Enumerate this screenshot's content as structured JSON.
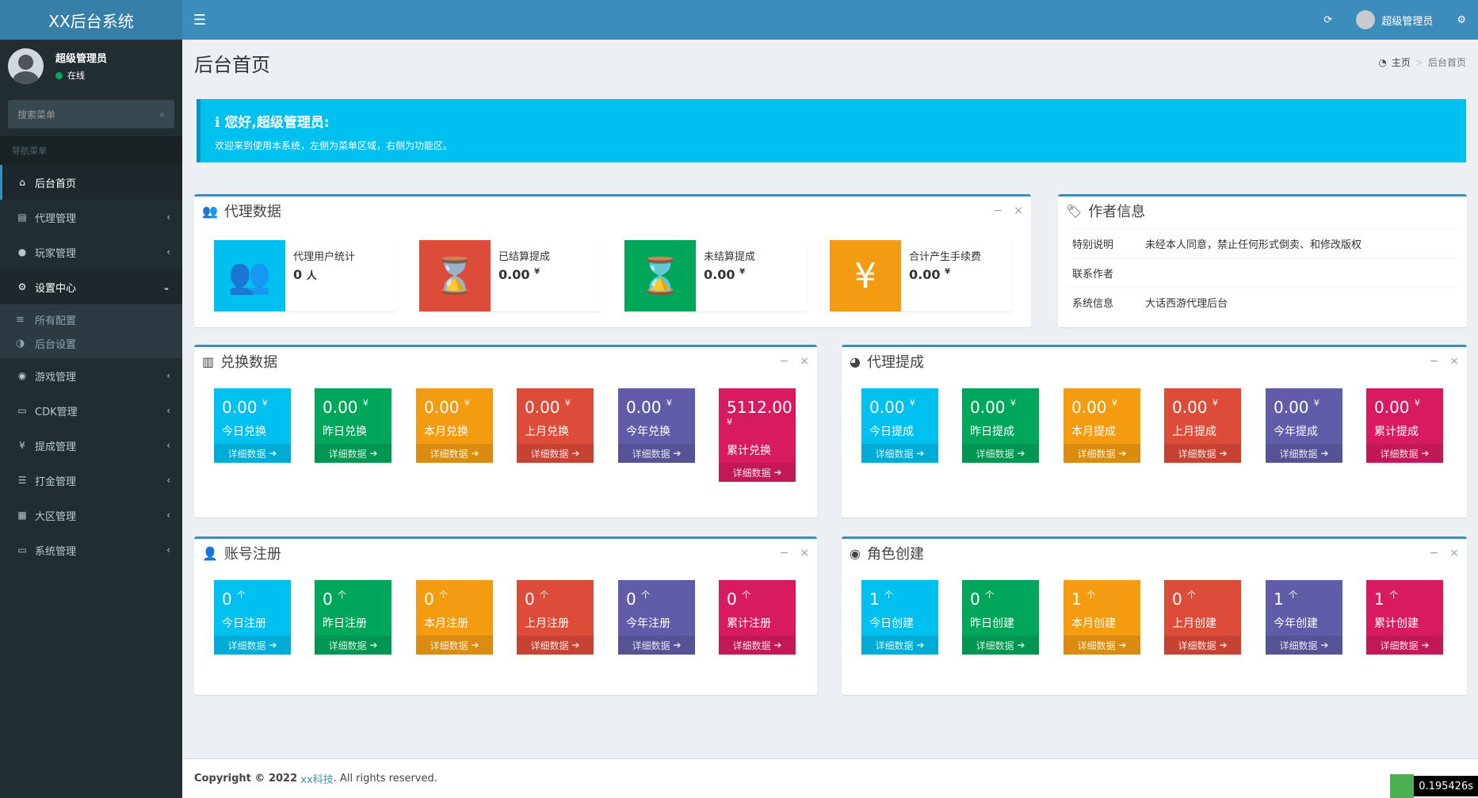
{
  "app": {
    "logo": "XX后台系统"
  },
  "topbar": {
    "user": "超级管理员"
  },
  "sidebar": {
    "user_name": "超级管理员",
    "status": "在线",
    "search_placeholder": "搜索菜单",
    "header": "导航菜单",
    "items": [
      {
        "label": "后台首页"
      },
      {
        "label": "代理管理"
      },
      {
        "label": "玩家管理"
      },
      {
        "label": "设置中心"
      },
      {
        "label": "游戏管理"
      },
      {
        "label": "CDK管理"
      },
      {
        "label": "提成管理"
      },
      {
        "label": "打金管理"
      },
      {
        "label": "大区管理"
      },
      {
        "label": "系统管理"
      }
    ],
    "submenu": [
      {
        "label": "所有配置"
      },
      {
        "label": "后台设置"
      }
    ]
  },
  "page": {
    "title": "后台首页",
    "crumb_home": "主页",
    "crumb_current": "后台首页"
  },
  "callout": {
    "title": "您好,超级管理员:",
    "text": "欢迎来到使用本系统，左侧为菜单区域，右侧为功能区。"
  },
  "agent": {
    "title": "代理数据",
    "cards": [
      {
        "label": "代理用户统计",
        "value": "0",
        "unit": "人"
      },
      {
        "label": "已结算提成",
        "value": "0.00",
        "unit": "¥"
      },
      {
        "label": "未结算提成",
        "value": "0.00",
        "unit": "¥"
      },
      {
        "label": "合计产生手续费",
        "value": "0.00",
        "unit": "¥"
      }
    ]
  },
  "author": {
    "title": "作者信息",
    "rows": [
      {
        "k": "特别说明",
        "v": "未经本人同意，禁止任何形式倒卖、和修改版权"
      },
      {
        "k": "联系作者",
        "v": ""
      },
      {
        "k": "系统信息",
        "v": "大话西游代理后台"
      }
    ]
  },
  "more_label": "详细数据",
  "exchange": {
    "title": "兑换数据",
    "cards": [
      {
        "value": "0.00",
        "unit": "¥",
        "label": "今日兑换"
      },
      {
        "value": "0.00",
        "unit": "¥",
        "label": "昨日兑换"
      },
      {
        "value": "0.00",
        "unit": "¥",
        "label": "本月兑换"
      },
      {
        "value": "0.00",
        "unit": "¥",
        "label": "上月兑换"
      },
      {
        "value": "0.00",
        "unit": "¥",
        "label": "今年兑换"
      },
      {
        "value": "5112.00",
        "unit": "¥",
        "label": "累计兑换"
      }
    ]
  },
  "commission": {
    "title": "代理提成",
    "cards": [
      {
        "value": "0.00",
        "unit": "¥",
        "label": "今日提成"
      },
      {
        "value": "0.00",
        "unit": "¥",
        "label": "昨日提成"
      },
      {
        "value": "0.00",
        "unit": "¥",
        "label": "本月提成"
      },
      {
        "value": "0.00",
        "unit": "¥",
        "label": "上月提成"
      },
      {
        "value": "0.00",
        "unit": "¥",
        "label": "今年提成"
      },
      {
        "value": "0.00",
        "unit": "¥",
        "label": "累计提成"
      }
    ]
  },
  "register": {
    "title": "账号注册",
    "cards": [
      {
        "value": "0",
        "unit": "个",
        "label": "今日注册"
      },
      {
        "value": "0",
        "unit": "个",
        "label": "昨日注册"
      },
      {
        "value": "0",
        "unit": "个",
        "label": "本月注册"
      },
      {
        "value": "0",
        "unit": "个",
        "label": "上月注册"
      },
      {
        "value": "0",
        "unit": "个",
        "label": "今年注册"
      },
      {
        "value": "0",
        "unit": "个",
        "label": "累计注册"
      }
    ]
  },
  "role": {
    "title": "角色创建",
    "cards": [
      {
        "value": "1",
        "unit": "个",
        "label": "今日创建"
      },
      {
        "value": "0",
        "unit": "个",
        "label": "昨日创建"
      },
      {
        "value": "1",
        "unit": "个",
        "label": "本月创建"
      },
      {
        "value": "0",
        "unit": "个",
        "label": "上月创建"
      },
      {
        "value": "1",
        "unit": "个",
        "label": "今年创建"
      },
      {
        "value": "1",
        "unit": "个",
        "label": "累计创建"
      }
    ]
  },
  "footer": {
    "copyright": "Copyright © 2022",
    "company": "xx科技",
    "rights": ". All rights reserved."
  },
  "timer": {
    "value": "0.195426s"
  },
  "colors": {
    "aqua": "#00c0ef",
    "green": "#00a65a",
    "yellow": "#f39c12",
    "red": "#dd4b39",
    "purple": "#605ca8",
    "maroon": "#d81b60",
    "topbar": "#3c8dbc",
    "sidebar": "#222d32"
  }
}
